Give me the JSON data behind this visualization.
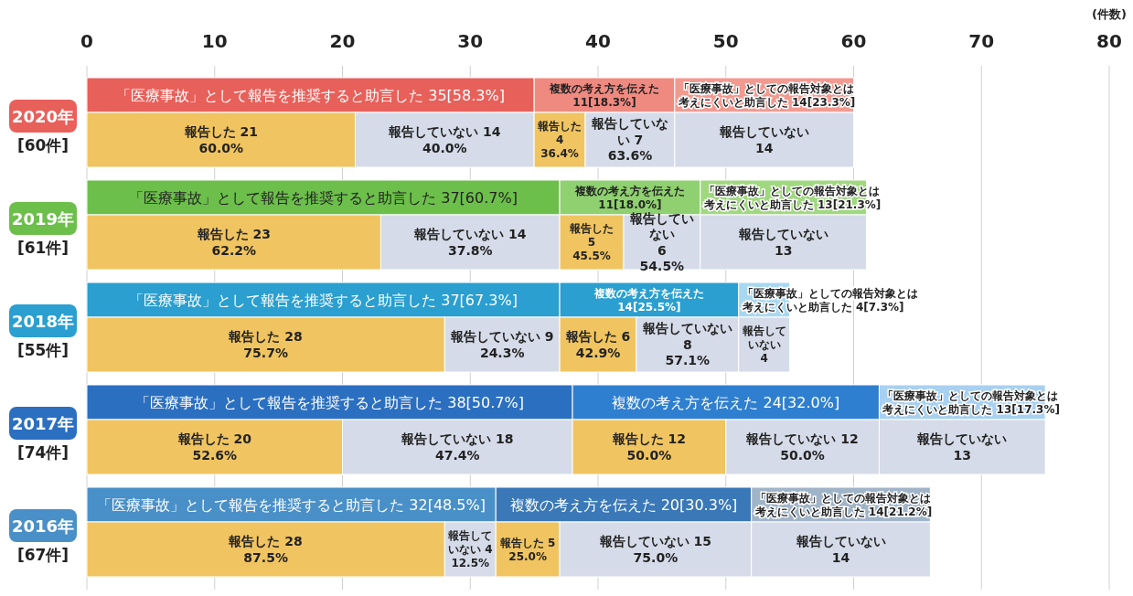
{
  "chart_data": {
    "type": "bar",
    "orientation": "horizontal",
    "stacked": true,
    "xlabel": "(件数)",
    "xlim": [
      0,
      80
    ],
    "xticks": [
      0,
      10,
      20,
      30,
      40,
      50,
      60,
      70,
      80
    ],
    "grid": "x",
    "categories": [
      "2020年",
      "[60件]",
      "2019年",
      "[61件]",
      "2018年",
      "[55件]",
      "2017年",
      "[74件]",
      "2016年",
      "[67件]"
    ],
    "series": [
      {
        "colors": [
          "#e8605a",
          "#f0c460",
          "#6cbf4a",
          "#f0c460",
          "#2a9fd0",
          "#f0c460",
          "#2b6fc0",
          "#f0c460",
          "#4a90c8",
          "#f0c460"
        ],
        "values": [
          35,
          21,
          37,
          23,
          37,
          28,
          38,
          20,
          32,
          28
        ],
        "value_labels": [
          "「医療事故」として報告を推奨すると助言した 35[58.3%]",
          "報告した 21\n60.0%",
          "「医療事故」として報告を推奨すると助言した 37[60.7%]",
          "報告した 23\n62.2%",
          "「医療事故」として報告を推奨すると助言した 37[67.3%]",
          "報告した 28\n75.7%",
          "「医療事故」として報告を推奨すると助言した 38[50.7%]",
          "報告した 20\n52.6%",
          "「医療事故」として報告を推奨すると助言した 32[48.5%]",
          "報告した 28\n87.5%"
        ]
      },
      {
        "colors": [
          null,
          "#d5dbe8",
          null,
          "#d5dbe8",
          null,
          "#d5dbe8",
          null,
          "#d5dbe8",
          null,
          "#d5dbe8"
        ],
        "values": [
          null,
          14,
          null,
          14,
          null,
          9,
          null,
          18,
          null,
          4
        ],
        "value_labels": [
          null,
          "報告していない 14\n40.0%",
          null,
          "報告していない 14\n37.8%",
          null,
          "報告していない 9\n24.3%",
          null,
          "報告していない 18\n47.4%",
          null,
          "報告していない 4\n12.5%"
        ]
      },
      {
        "colors": [
          "#ef8a80",
          "#f0c460",
          "#8fd070",
          "#f0c460",
          "#2a9fd0",
          "#f0c460",
          "#2f7fd0",
          "#f0c460",
          "#3a78b8",
          "#f0c460"
        ],
        "values": [
          11,
          4,
          11,
          5,
          14,
          6,
          24,
          12,
          20,
          5
        ],
        "value_labels": [
          "複数の考え方を伝えた 11[18.3%]",
          "報告した\n4\n36.4%",
          "複数の考え方を伝えた\n11[18.0%]",
          "報告した\n5\n45.5%",
          "複数の考え方を伝えた\n14[25.5%]",
          "報告した 6\n42.9%",
          "複数の考え方を伝えた 24[32.0%]",
          "報告した 12\n50.0%",
          "複数の考え方を伝えた 20[30.3%]",
          "報告した 5\n25.0%"
        ]
      },
      {
        "colors": [
          null,
          "#d5dbe8",
          null,
          "#d5dbe8",
          null,
          "#d5dbe8",
          null,
          "#d5dbe8",
          null,
          "#d5dbe8"
        ],
        "values": [
          null,
          7,
          null,
          6,
          null,
          8,
          null,
          12,
          null,
          15
        ],
        "value_labels": [
          null,
          "報告していない 7\n63.6%",
          null,
          "報告していない\n6\n54.5%",
          null,
          "報告していない 8\n57.1%",
          null,
          "報告していない 12\n50.0%",
          null,
          "報告していない 15\n75.0%"
        ]
      },
      {
        "colors": [
          "#f29a90",
          "#d5dbe8",
          "#a0d880",
          "#d5dbe8",
          "#a8d8f0",
          "#d5dbe8",
          "#a8d0f0",
          "#d5dbe8",
          "#a0b4c8",
          "#d5dbe8"
        ],
        "values": [
          14,
          14,
          13,
          13,
          4,
          4,
          13,
          13,
          14,
          14
        ],
        "value_labels": [
          "「医療事故」としての報告対象とは考えにくいと助言した 14[23.3%]",
          "報告していない\n14",
          "「医療事故」としての報告対象とは考えにくいと助言した 13[21.3%]",
          "報告していない\n13",
          "「医療事故」としての報告対象とは考えにくいと助言した 4[7.3%]",
          "報告していない\n4",
          "「医療事故」としての報告対象とは考えにくいと助言した 13[17.3%]",
          "報告していない\n13",
          "「医療事故」としての報告対象とは考えにくいと助言した 14[21.2%]",
          "報告していない\n14"
        ]
      }
    ]
  }
}
